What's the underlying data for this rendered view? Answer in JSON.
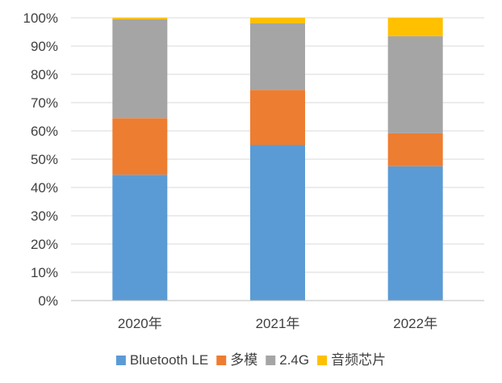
{
  "chart_data": {
    "type": "bar",
    "stacked": true,
    "percent": true,
    "categories": [
      "2020年",
      "2021年",
      "2022年"
    ],
    "series": [
      {
        "name": "Bluetooth LE",
        "color": "#5b9bd5",
        "values": [
          44.5,
          55.0,
          47.5
        ]
      },
      {
        "name": "多模",
        "color": "#ed7d31",
        "values": [
          20.0,
          19.5,
          11.7
        ]
      },
      {
        "name": "2.4G",
        "color": "#a5a5a5",
        "values": [
          35.0,
          23.5,
          34.3
        ]
      },
      {
        "name": "音频芯片",
        "color": "#ffc000",
        "values": [
          0.5,
          2.0,
          6.5
        ]
      }
    ],
    "yticks": [
      "0%",
      "10%",
      "20%",
      "30%",
      "40%",
      "50%",
      "60%",
      "70%",
      "80%",
      "90%",
      "100%"
    ],
    "ylim": [
      0,
      100
    ],
    "grid": true,
    "legend_position": "bottom"
  }
}
